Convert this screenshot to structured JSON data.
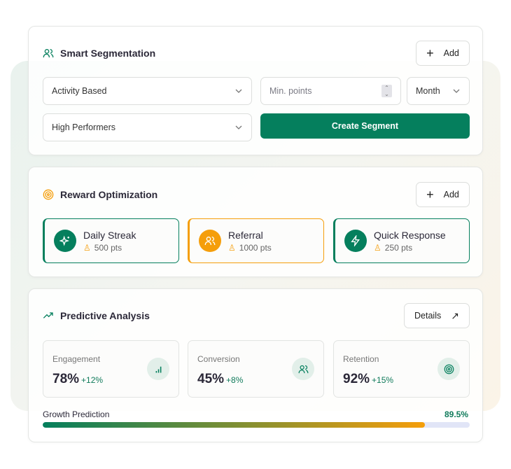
{
  "segmentation": {
    "title": "Smart Segmentation",
    "add_label": "Add",
    "activity_select": "Activity Based",
    "points_placeholder": "Min. points",
    "period_select": "Month",
    "group_select": "High Performers",
    "create_label": "Create Segment"
  },
  "rewards": {
    "title": "Reward Optimization",
    "add_label": "Add",
    "items": [
      {
        "name": "Daily Streak",
        "points": "500 pts",
        "icon": "sparkles-icon",
        "color": "#057f5d"
      },
      {
        "name": "Referral",
        "points": "1000 pts",
        "icon": "users-icon",
        "color": "#f59e0b"
      },
      {
        "name": "Quick Response",
        "points": "250 pts",
        "icon": "lightning-icon",
        "color": "#057f5d"
      }
    ]
  },
  "predictive": {
    "title": "Predictive Analysis",
    "details_label": "Details",
    "stats": [
      {
        "label": "Engagement",
        "value": "78%",
        "change": "+12%",
        "icon": "bar-chart-icon"
      },
      {
        "label": "Conversion",
        "value": "45%",
        "change": "+8%",
        "icon": "users-icon"
      },
      {
        "label": "Retention",
        "value": "92%",
        "change": "+15%",
        "icon": "target-icon"
      }
    ],
    "growth_label": "Growth Prediction",
    "growth_value": "89.5%",
    "growth_percent": 89.5
  }
}
